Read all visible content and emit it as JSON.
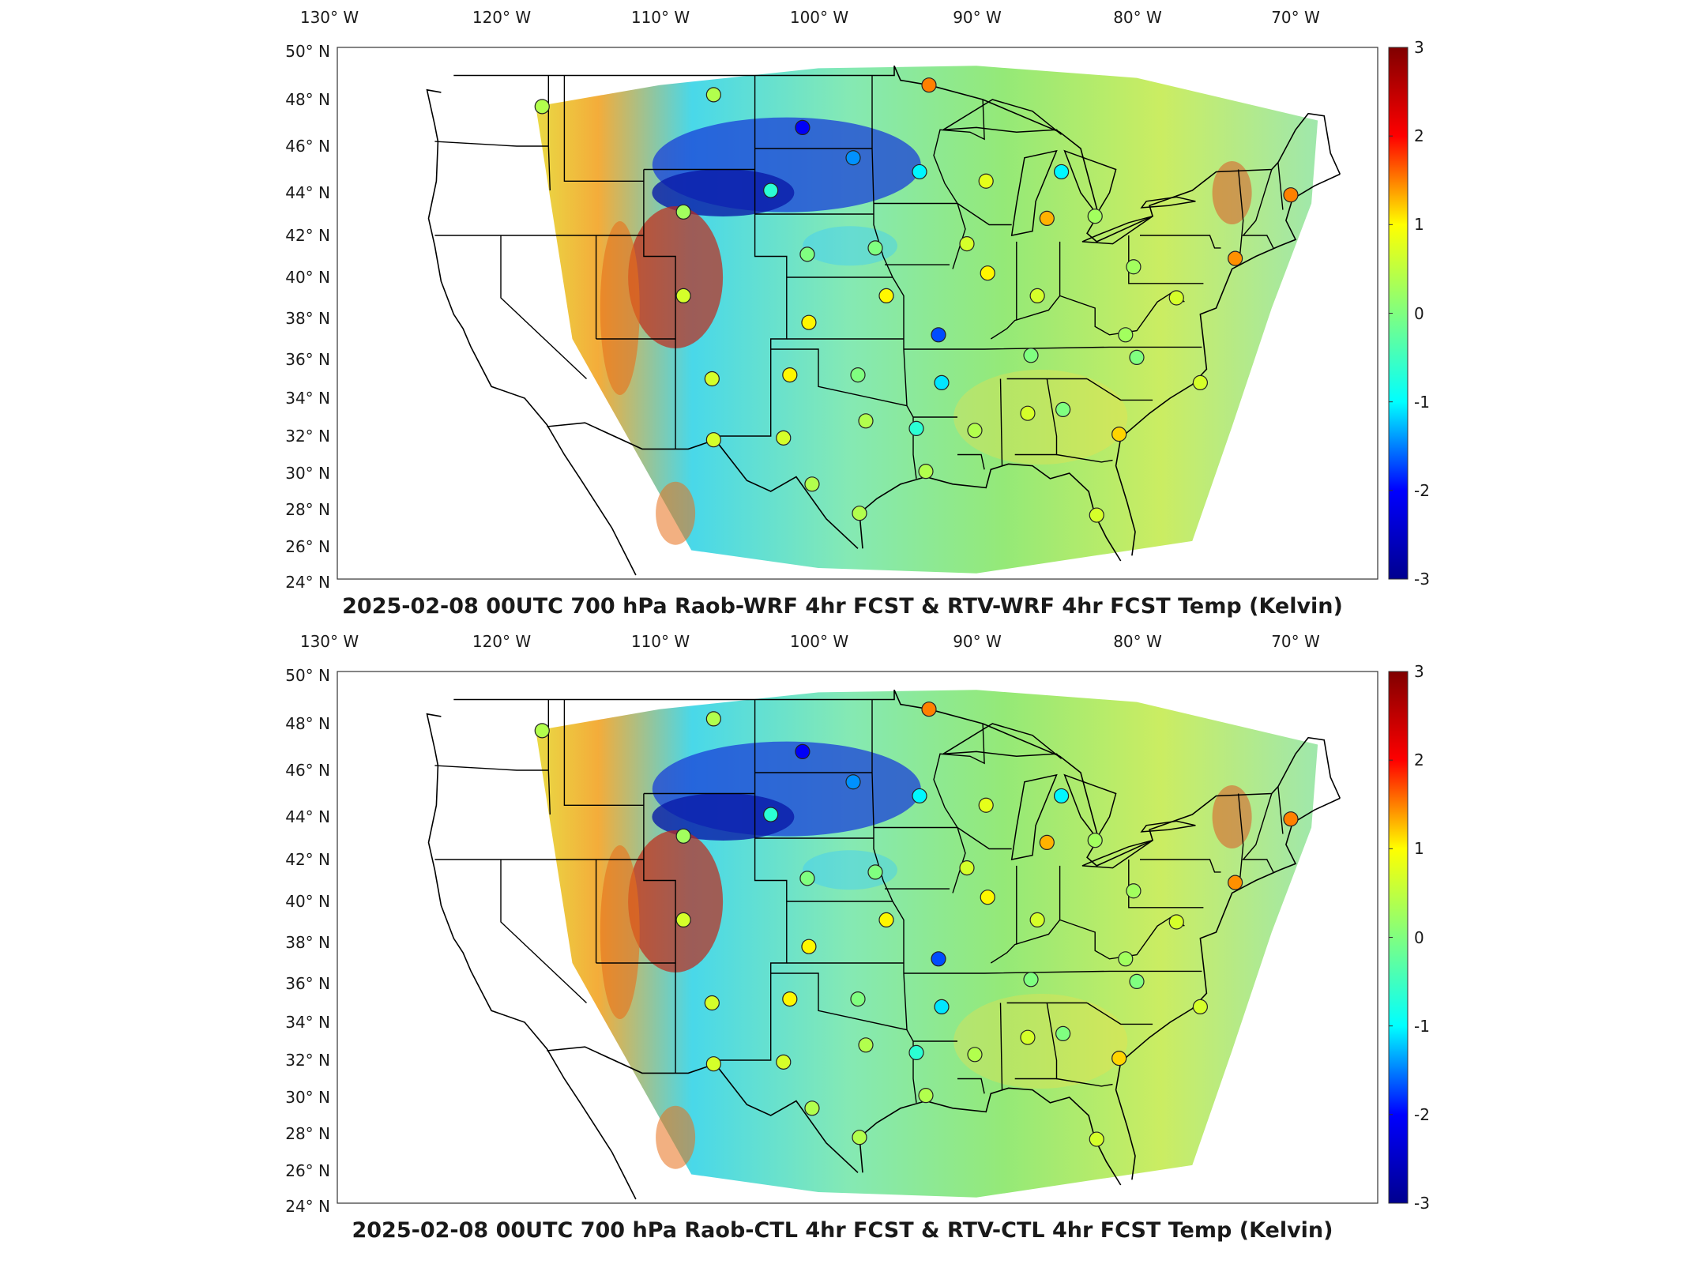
{
  "panels": [
    {
      "title": "2025-02-08 00UTC 700 hPa Raob-WRF 4hr FCST & RTV-WRF 4hr FCST Temp (Kelvin)"
    },
    {
      "title": "2025-02-08 00UTC 700 hPa Raob-CTL 4hr FCST & RTV-CTL 4hr FCST Temp (Kelvin)"
    }
  ],
  "map": {
    "lon_labels": [
      "130° W",
      "120° W",
      "110° W",
      "100° W",
      "90° W",
      "80° W",
      "70° W"
    ],
    "lat_labels": [
      "50° N",
      "48° N",
      "46° N",
      "44° N",
      "42° N",
      "40° N",
      "38° N",
      "36° N",
      "34° N",
      "32° N",
      "30° N",
      "28° N",
      "26° N",
      "24° N"
    ],
    "colorbar": {
      "ticks": [
        "3",
        "2",
        "1",
        "0",
        "-1",
        "-2",
        "-3"
      ],
      "min": -3,
      "max": 3,
      "colormap": "jet",
      "colors": [
        "#00008f",
        "#0000ff",
        "#00ffff",
        "#80ff80",
        "#ffff00",
        "#ff0000",
        "#800000"
      ]
    }
  },
  "chart_data": {
    "type": "heatmap",
    "variable": "Temp (Kelvin)",
    "level": "700 hPa",
    "valid_time": "2025-02-08 00UTC",
    "color_range": [
      -3,
      3
    ],
    "colormap": "jet",
    "lon_range": [
      -130,
      -66
    ],
    "lat_range": [
      24,
      50
    ],
    "raob_station_markers": [
      {
        "lon": -117.4,
        "lat": 47.7,
        "value": 0.3
      },
      {
        "lon": -106.6,
        "lat": 48.2,
        "value": 0.3
      },
      {
        "lon": -101.0,
        "lat": 46.8,
        "value": -2.3
      },
      {
        "lon": -93.0,
        "lat": 48.6,
        "value": 1.5
      },
      {
        "lon": -97.8,
        "lat": 45.5,
        "value": -1.4
      },
      {
        "lon": -93.6,
        "lat": 44.9,
        "value": -0.8
      },
      {
        "lon": -84.7,
        "lat": 44.9,
        "value": -0.8
      },
      {
        "lon": -89.4,
        "lat": 44.5,
        "value": 0.6
      },
      {
        "lon": -103.0,
        "lat": 44.1,
        "value": -0.5
      },
      {
        "lon": -108.5,
        "lat": 43.1,
        "value": 0.2
      },
      {
        "lon": -85.6,
        "lat": 42.8,
        "value": 1.2
      },
      {
        "lon": -82.6,
        "lat": 42.9,
        "value": 0.2
      },
      {
        "lon": -100.7,
        "lat": 41.1,
        "value": 0.0
      },
      {
        "lon": -96.4,
        "lat": 41.4,
        "value": 0.0
      },
      {
        "lon": -90.6,
        "lat": 41.6,
        "value": 0.5
      },
      {
        "lon": -89.3,
        "lat": 40.2,
        "value": 0.8
      },
      {
        "lon": -86.2,
        "lat": 39.1,
        "value": 0.5
      },
      {
        "lon": -80.2,
        "lat": 40.5,
        "value": 0.2
      },
      {
        "lon": -77.5,
        "lat": 39.0,
        "value": 0.5
      },
      {
        "lon": -73.8,
        "lat": 40.9,
        "value": 1.4
      },
      {
        "lon": -70.3,
        "lat": 43.9,
        "value": 1.5
      },
      {
        "lon": -108.5,
        "lat": 39.1,
        "value": 0.5
      },
      {
        "lon": -100.6,
        "lat": 37.8,
        "value": 0.8
      },
      {
        "lon": -95.7,
        "lat": 39.1,
        "value": 0.8
      },
      {
        "lon": -92.4,
        "lat": 37.2,
        "value": -1.8
      },
      {
        "lon": -86.6,
        "lat": 36.2,
        "value": 0.0
      },
      {
        "lon": -80.7,
        "lat": 37.2,
        "value": 0.2
      },
      {
        "lon": -80.0,
        "lat": 36.1,
        "value": 0.0
      },
      {
        "lon": -76.0,
        "lat": 34.8,
        "value": 0.5
      },
      {
        "lon": -106.7,
        "lat": 35.0,
        "value": 0.5
      },
      {
        "lon": -101.8,
        "lat": 35.2,
        "value": 0.8
      },
      {
        "lon": -97.5,
        "lat": 35.2,
        "value": 0.0
      },
      {
        "lon": -92.2,
        "lat": 34.8,
        "value": -0.9
      },
      {
        "lon": -97.0,
        "lat": 32.8,
        "value": 0.3
      },
      {
        "lon": -93.8,
        "lat": 32.4,
        "value": -0.5
      },
      {
        "lon": -90.1,
        "lat": 32.3,
        "value": 0.3
      },
      {
        "lon": -86.8,
        "lat": 33.2,
        "value": 0.5
      },
      {
        "lon": -84.6,
        "lat": 33.4,
        "value": 0.0
      },
      {
        "lon": -81.1,
        "lat": 32.1,
        "value": 1.0
      },
      {
        "lon": -106.6,
        "lat": 31.8,
        "value": 0.5
      },
      {
        "lon": -102.2,
        "lat": 31.9,
        "value": 0.5
      },
      {
        "lon": -100.4,
        "lat": 29.4,
        "value": 0.3
      },
      {
        "lon": -93.2,
        "lat": 30.1,
        "value": 0.3
      },
      {
        "lon": -97.4,
        "lat": 27.8,
        "value": 0.3
      },
      {
        "lon": -82.5,
        "lat": 27.7,
        "value": 0.5
      }
    ]
  }
}
